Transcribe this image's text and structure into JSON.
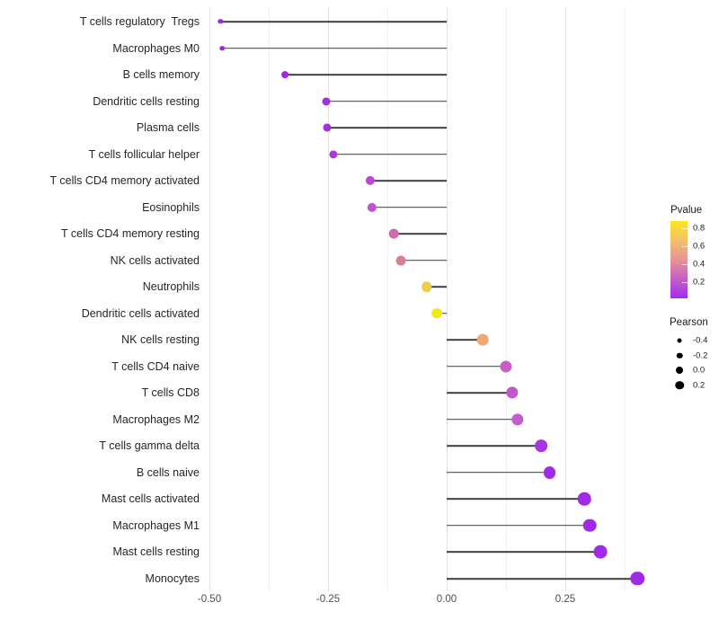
{
  "chart_data": {
    "type": "lollipop",
    "title": "",
    "xlabel": "",
    "ylabel": "",
    "xlim": [
      -0.55,
      0.44
    ],
    "grid": "vertical major and minor gridlines, white background",
    "x_ticks": [
      {
        "label": "-0.50",
        "value": -0.5
      },
      {
        "label": "-0.25",
        "value": -0.25
      },
      {
        "label": "0.00",
        "value": 0.0
      },
      {
        "label": "0.25",
        "value": 0.25
      }
    ],
    "x_minor_ticks": [
      -0.375,
      -0.125,
      0.125,
      0.375
    ],
    "baseline_value": 0.0,
    "points": [
      {
        "label": "T cells regulatory  Tregs",
        "pearson": -0.477,
        "color": "#9a2be2"
      },
      {
        "label": "Macrophages M0",
        "pearson": -0.473,
        "color": "#9a2be2"
      },
      {
        "label": "B cells memory",
        "pearson": -0.341,
        "color": "#9c2be0"
      },
      {
        "label": "Dendritic cells resting",
        "pearson": -0.254,
        "color": "#a42fde"
      },
      {
        "label": "Plasma cells",
        "pearson": -0.252,
        "color": "#a631dc"
      },
      {
        "label": "T cells follicular helper",
        "pearson": -0.239,
        "color": "#ac39d8"
      },
      {
        "label": "T cells CD4 memory activated",
        "pearson": -0.161,
        "color": "#bc49d6"
      },
      {
        "label": "Eosinophils",
        "pearson": -0.157,
        "color": "#c253ce"
      },
      {
        "label": "T cells CD4 memory resting",
        "pearson": -0.112,
        "color": "#ce6aae"
      },
      {
        "label": "NK cells activated",
        "pearson": -0.097,
        "color": "#da8094"
      },
      {
        "label": "Neutrophils",
        "pearson": -0.042,
        "color": "#e8d04e"
      },
      {
        "label": "Dendritic cells activated",
        "pearson": -0.021,
        "color": "#f2ea15"
      },
      {
        "label": "NK cells resting",
        "pearson": 0.076,
        "color": "#efa873"
      },
      {
        "label": "T cells CD4 naive",
        "pearson": 0.125,
        "color": "#c75ec3"
      },
      {
        "label": "T cells CD8",
        "pearson": 0.138,
        "color": "#c356c8"
      },
      {
        "label": "Macrophages M2",
        "pearson": 0.149,
        "color": "#c55cce"
      },
      {
        "label": "T cells gamma delta",
        "pearson": 0.199,
        "color": "#a936e3"
      },
      {
        "label": "B cells naive",
        "pearson": 0.217,
        "color": "#a129e8"
      },
      {
        "label": "Mast cells activated",
        "pearson": 0.29,
        "color": "#a02be5"
      },
      {
        "label": "Macrophages M1",
        "pearson": 0.301,
        "color": "#9f2be6"
      },
      {
        "label": "Mast cells resting",
        "pearson": 0.324,
        "color": "#9e2be7"
      },
      {
        "label": "Monocytes",
        "pearson": 0.402,
        "color": "#9f2be8"
      }
    ]
  },
  "legend": {
    "pvalue": {
      "title": "Pvalue",
      "gradient_top_to_bottom": [
        "#fbe723",
        "#f4c06a",
        "#e59596",
        "#c55ec6",
        "#a42bf0"
      ],
      "ticks": [
        {
          "label": "0.8"
        },
        {
          "label": "0.6"
        },
        {
          "label": "0.4"
        },
        {
          "label": "0.2"
        }
      ]
    },
    "pearson": {
      "title": "Pearson",
      "items": [
        {
          "label": "-0.4",
          "value": -0.4
        },
        {
          "label": "-0.2",
          "value": -0.2
        },
        {
          "label": "0.0",
          "value": 0.0
        },
        {
          "label": "0.2",
          "value": 0.2
        }
      ]
    }
  }
}
